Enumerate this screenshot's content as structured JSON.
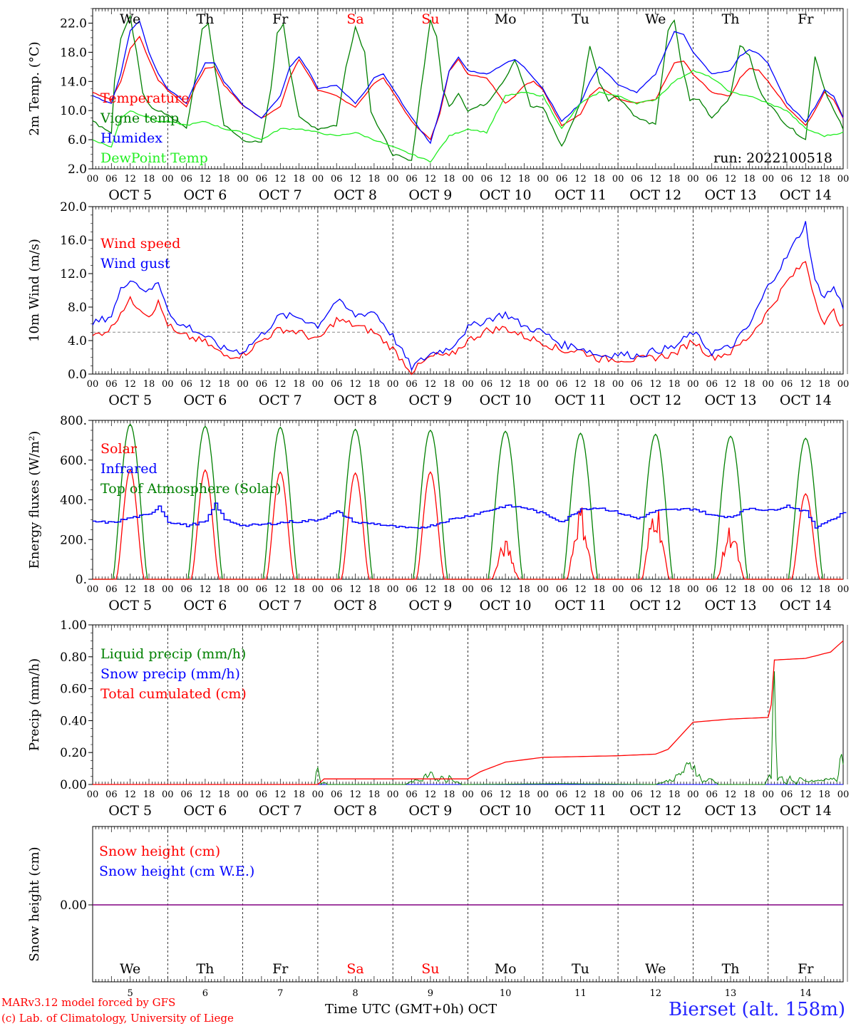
{
  "days": {
    "weekday_labels": [
      "We",
      "Th",
      "Fr",
      "Sa",
      "Su",
      "Mo",
      "Tu",
      "We",
      "Th",
      "Fr"
    ],
    "weekend_flags": [
      false,
      false,
      false,
      true,
      true,
      false,
      false,
      false,
      false,
      false
    ],
    "date_labels": [
      "OCT  5",
      "OCT  6",
      "OCT  7",
      "OCT  8",
      "OCT  9",
      "OCT 10",
      "OCT 11",
      "OCT 12",
      "OCT 13",
      "OCT 14"
    ],
    "hour_ticks": [
      "00",
      "06",
      "12",
      "18"
    ],
    "final_hour": "00",
    "day_numbers": [
      "5",
      "6",
      "7",
      "8",
      "9",
      "10",
      "11",
      "12",
      "13",
      "14"
    ]
  },
  "colors": {
    "red": "#ff0000",
    "blue": "#0000ff",
    "green": "#008000",
    "light_green": "#22ee22",
    "purple": "#800080",
    "grey": "#888888"
  },
  "footer": {
    "line1": "MARv3.12 model forced by GFS",
    "line2": "(c) Lab. of Climatology, University of Liege",
    "axis_title": "Time UTC (GMT+0h) OCT",
    "station": "Bierset (alt. 158m)"
  },
  "chart_data": [
    {
      "type": "line",
      "ylabel": "2m Temp. (°C)",
      "ylim": [
        2,
        24
      ],
      "yticks": [
        "2.0",
        "6.0",
        "10.0",
        "14.0",
        "18.0",
        "22.0"
      ],
      "ytick_values": [
        2,
        6,
        10,
        14,
        18,
        22
      ],
      "run_label": "run: 2022100518",
      "x_unit": "hours since Oct 5 00 UTC",
      "series": [
        {
          "name": "Temperature",
          "color": "#ff0000",
          "x": [
            0,
            6,
            9,
            12,
            15,
            18,
            21,
            24,
            30,
            33,
            36,
            39,
            42,
            48,
            54,
            60,
            63,
            66,
            69,
            72,
            78,
            84,
            87,
            90,
            93,
            96,
            102,
            108,
            111,
            114,
            117,
            120,
            126,
            132,
            135,
            138,
            141,
            144,
            150,
            156,
            159,
            162,
            165,
            168,
            174,
            180,
            183,
            186,
            189,
            192,
            198,
            204,
            207,
            210,
            213,
            216,
            222,
            228,
            231,
            234,
            237,
            240
          ],
          "y": [
            12.5,
            11.5,
            14,
            18.5,
            20.2,
            17,
            14.2,
            12.8,
            10.5,
            13.5,
            15.8,
            16,
            13.5,
            10.7,
            9,
            10.5,
            14.5,
            17,
            15,
            12.8,
            12,
            10.5,
            12,
            13.8,
            14.5,
            12.5,
            8.5,
            6,
            9.5,
            15.5,
            17,
            15,
            14.5,
            11,
            12,
            13.5,
            14,
            12.8,
            8,
            9.5,
            12,
            13.2,
            12.5,
            11.5,
            11,
            11.5,
            14,
            16.5,
            16.8,
            15,
            12.5,
            12,
            14.5,
            15.8,
            15.5,
            14,
            10.5,
            8,
            10,
            12.5,
            11.5,
            9
          ]
        },
        {
          "name": "Vigne temp",
          "color": "#008000",
          "x": [
            0,
            6,
            7,
            9,
            12,
            14,
            16,
            18,
            20,
            24,
            30,
            33,
            35,
            37,
            39,
            42,
            48,
            54,
            57,
            59,
            61,
            63,
            66,
            72,
            78,
            81,
            84,
            87,
            89,
            91,
            96,
            102,
            105,
            108,
            110,
            112,
            114,
            117,
            120,
            126,
            132,
            135,
            138,
            140,
            144,
            150,
            156,
            159,
            162,
            165,
            168,
            174,
            180,
            184,
            186,
            188,
            191,
            194,
            198,
            204,
            207,
            210,
            213,
            216,
            222,
            228,
            231,
            234,
            237,
            240
          ],
          "y": [
            8.5,
            7,
            14,
            20,
            22.8,
            18,
            12.5,
            11,
            10,
            9.5,
            7.5,
            15,
            21,
            22,
            16,
            8,
            6,
            5.5,
            13,
            20.5,
            22,
            16,
            9,
            7.5,
            8,
            16,
            21.5,
            18,
            10,
            8,
            4,
            3,
            13,
            22.5,
            20,
            13,
            10.5,
            12.5,
            10,
            11,
            14.5,
            17,
            13.5,
            10.5,
            10.5,
            5,
            11,
            19,
            14,
            11.5,
            12,
            9,
            8,
            21,
            22.3,
            17,
            11.5,
            11.5,
            9,
            12,
            19,
            17.5,
            13,
            11,
            8,
            6,
            17.5,
            13,
            10,
            7.5
          ]
        },
        {
          "name": "Humidex",
          "color": "#0000ff",
          "x": [
            0,
            6,
            9,
            12,
            15,
            18,
            21,
            24,
            30,
            33,
            36,
            39,
            42,
            48,
            54,
            60,
            63,
            66,
            69,
            72,
            78,
            84,
            87,
            90,
            93,
            96,
            102,
            108,
            111,
            114,
            117,
            120,
            126,
            132,
            135,
            138,
            141,
            144,
            150,
            156,
            159,
            162,
            165,
            168,
            174,
            180,
            183,
            186,
            189,
            192,
            198,
            204,
            207,
            210,
            213,
            216,
            222,
            228,
            231,
            234,
            237,
            240
          ],
          "y": [
            12,
            11,
            15,
            21,
            22.3,
            18,
            15,
            13,
            11,
            14,
            16.5,
            16.5,
            14,
            10.8,
            9,
            12,
            16,
            17.4,
            15.5,
            13,
            13.5,
            11,
            12.5,
            14.5,
            15,
            13,
            9,
            5.5,
            10,
            15.5,
            17.3,
            15.5,
            15,
            16.5,
            17,
            16,
            14.5,
            13,
            8.5,
            11,
            14,
            16,
            15,
            13.5,
            12.5,
            15,
            18,
            20.8,
            20.5,
            18,
            15,
            15.5,
            17.5,
            18.3,
            17.8,
            16.5,
            11,
            8.5,
            10.5,
            12.8,
            12,
            9
          ]
        },
        {
          "name": "DewPoint Temp",
          "color": "#22ee22",
          "x": [
            0,
            6,
            9,
            12,
            15,
            18,
            21,
            24,
            30,
            36,
            42,
            48,
            54,
            60,
            66,
            72,
            78,
            84,
            90,
            96,
            102,
            108,
            114,
            120,
            126,
            132,
            138,
            144,
            150,
            156,
            162,
            168,
            174,
            180,
            186,
            192,
            198,
            204,
            210,
            216,
            222,
            228,
            234,
            240
          ],
          "y": [
            6,
            5,
            9,
            10,
            9.5,
            9,
            8.5,
            8.5,
            8,
            8.5,
            7.5,
            7,
            6,
            7.5,
            7.5,
            7,
            6.5,
            7,
            6,
            5,
            4,
            3,
            6.5,
            7.5,
            7,
            12,
            12.5,
            12,
            7.5,
            11,
            12.5,
            12,
            11,
            11.5,
            14,
            15.5,
            14.5,
            12.5,
            12,
            11,
            10,
            7.5,
            6.5,
            7
          ]
        }
      ]
    },
    {
      "type": "line",
      "ylabel": "10m Wind (m/s)",
      "ylim": [
        0,
        20
      ],
      "yticks": [
        "0.0",
        "4.0",
        "8.0",
        "12.0",
        "16.0",
        "20.0"
      ],
      "ytick_values": [
        0,
        4,
        8,
        12,
        16,
        20
      ],
      "reference_line": 5,
      "series": [
        {
          "name": "Wind speed",
          "color": "#ff0000",
          "x": [
            0,
            6,
            9,
            12,
            15,
            18,
            21,
            24,
            27,
            30,
            36,
            42,
            48,
            54,
            60,
            66,
            72,
            78,
            84,
            90,
            96,
            102,
            108,
            111,
            114,
            120,
            126,
            132,
            138,
            144,
            150,
            156,
            162,
            168,
            174,
            180,
            186,
            192,
            198,
            204,
            210,
            216,
            222,
            228,
            231,
            234,
            237,
            240
          ],
          "y": [
            4.5,
            5.5,
            7.5,
            8.8,
            8,
            7,
            8.5,
            6,
            4.7,
            4.5,
            3.8,
            2.2,
            2.3,
            4,
            5.4,
            5,
            4,
            6.5,
            5.8,
            5,
            3,
            0.3,
            2,
            2.3,
            2,
            4,
            5.2,
            5.5,
            4.5,
            3.8,
            2.8,
            2.8,
            1.8,
            1.8,
            1.7,
            2,
            2.4,
            4,
            2,
            2.6,
            4.5,
            7.5,
            11,
            13.5,
            9,
            6,
            7.5,
            5.5
          ]
        },
        {
          "name": "Wind gust",
          "color": "#0000ff",
          "x": [
            0,
            6,
            9,
            12,
            15,
            18,
            21,
            24,
            27,
            30,
            36,
            42,
            48,
            54,
            60,
            66,
            72,
            78,
            84,
            90,
            96,
            102,
            108,
            111,
            114,
            120,
            126,
            132,
            138,
            144,
            150,
            156,
            162,
            168,
            174,
            180,
            186,
            192,
            198,
            204,
            210,
            216,
            222,
            228,
            231,
            234,
            237,
            240
          ],
          "y": [
            6,
            7,
            10,
            11.5,
            10.5,
            9.8,
            11,
            8,
            5.8,
            5.8,
            4.5,
            3,
            2.7,
            4.7,
            7,
            6.8,
            5.8,
            8.8,
            7,
            7.5,
            4.5,
            0.8,
            2.4,
            2.8,
            3,
            5.5,
            6.5,
            7.2,
            5.7,
            5,
            3.5,
            3.2,
            2.2,
            2.4,
            2.2,
            2.8,
            3.2,
            5,
            2.6,
            3.2,
            5.8,
            10.5,
            14,
            18,
            11,
            9.3,
            10.3,
            8
          ]
        }
      ]
    },
    {
      "type": "line",
      "ylabel": "Energy fluxes (W/m²)",
      "ylim": [
        0,
        800
      ],
      "yticks": [
        "0.",
        "200.",
        "400.",
        "600.",
        "800."
      ],
      "ytick_values": [
        0,
        200,
        400,
        600,
        800
      ],
      "series": [
        {
          "name": "Solar",
          "color": "#ff0000",
          "peaks": [
            550,
            550,
            540,
            535,
            540,
            200,
            385,
            415,
            280,
            430
          ]
        },
        {
          "name": "Infrared",
          "color": "#0000ff",
          "x": [
            0,
            6,
            12,
            18,
            21,
            24,
            30,
            36,
            39,
            42,
            48,
            54,
            60,
            63,
            66,
            72,
            78,
            84,
            90,
            96,
            102,
            108,
            114,
            120,
            126,
            132,
            138,
            144,
            150,
            156,
            162,
            168,
            174,
            180,
            186,
            192,
            198,
            204,
            210,
            216,
            222,
            228,
            231,
            234,
            237,
            240
          ],
          "y": [
            290,
            285,
            310,
            325,
            370,
            290,
            270,
            290,
            380,
            300,
            270,
            275,
            285,
            290,
            290,
            300,
            340,
            285,
            280,
            265,
            255,
            270,
            300,
            320,
            345,
            370,
            360,
            330,
            290,
            355,
            360,
            335,
            305,
            345,
            350,
            355,
            320,
            315,
            360,
            345,
            370,
            340,
            260,
            290,
            305,
            340
          ]
        },
        {
          "name": "Top of Atmosphere (Solar)",
          "color": "#008000",
          "peaks": [
            780,
            770,
            765,
            755,
            750,
            745,
            735,
            730,
            720,
            710
          ]
        }
      ]
    },
    {
      "type": "line",
      "ylabel": "Precip (mm/h)",
      "ylim": [
        0,
        1
      ],
      "yticks": [
        "0.00",
        "0.20",
        "0.40",
        "0.60",
        "0.80",
        "1.00"
      ],
      "ytick_values": [
        0,
        0.2,
        0.4,
        0.6,
        0.8,
        1.0
      ],
      "series": [
        {
          "name": "Liquid precip (mm/h)",
          "color": "#008000",
          "x": [
            0,
            71,
            72,
            73,
            74,
            75,
            82,
            100,
            104,
            105,
            108,
            110,
            112,
            113,
            114,
            118,
            120,
            150,
            180,
            186,
            188,
            190,
            192,
            194,
            195,
            198,
            200,
            215,
            216,
            217,
            218,
            219,
            220,
            222,
            223,
            225,
            226,
            228,
            234,
            236,
            238,
            239,
            240
          ],
          "y": [
            0,
            0,
            0.14,
            0,
            0.02,
            0,
            0,
            0,
            0.04,
            0.02,
            0.1,
            0.03,
            0.06,
            0.02,
            0.05,
            0,
            0,
            0.005,
            0,
            0.04,
            0.08,
            0.12,
            0.15,
            0.06,
            0.02,
            0.04,
            0,
            0,
            0.08,
            0.05,
            0.82,
            0.02,
            0.06,
            0,
            0.06,
            0,
            0.04,
            0.02,
            0.03,
            0.05,
            0.02,
            0.2,
            0.22
          ]
        },
        {
          "name": "Snow precip (mm/h)",
          "color": "#0000ff",
          "x": [
            0,
            240
          ],
          "y": [
            0,
            0
          ]
        },
        {
          "name": "Total cumulated (cm)",
          "color": "#ff0000",
          "x": [
            0,
            72,
            74,
            120,
            124,
            132,
            144,
            168,
            180,
            184,
            192,
            204,
            216,
            217,
            218,
            228,
            236,
            240
          ],
          "y": [
            0,
            0,
            0.035,
            0.035,
            0.08,
            0.14,
            0.17,
            0.18,
            0.19,
            0.22,
            0.39,
            0.41,
            0.42,
            0.5,
            0.78,
            0.79,
            0.83,
            0.9
          ]
        }
      ]
    },
    {
      "type": "line",
      "ylabel": "Snow height (cm)",
      "yticks": [
        "0.00"
      ],
      "series": [
        {
          "name": "Snow height (cm)",
          "color": "#ff0000",
          "x": [
            0,
            240
          ],
          "y": [
            0,
            0
          ]
        },
        {
          "name": "Snow height (cm W.E.)",
          "color": "#0000ff",
          "x": [
            0,
            240
          ],
          "y": [
            0,
            0
          ]
        }
      ]
    }
  ]
}
